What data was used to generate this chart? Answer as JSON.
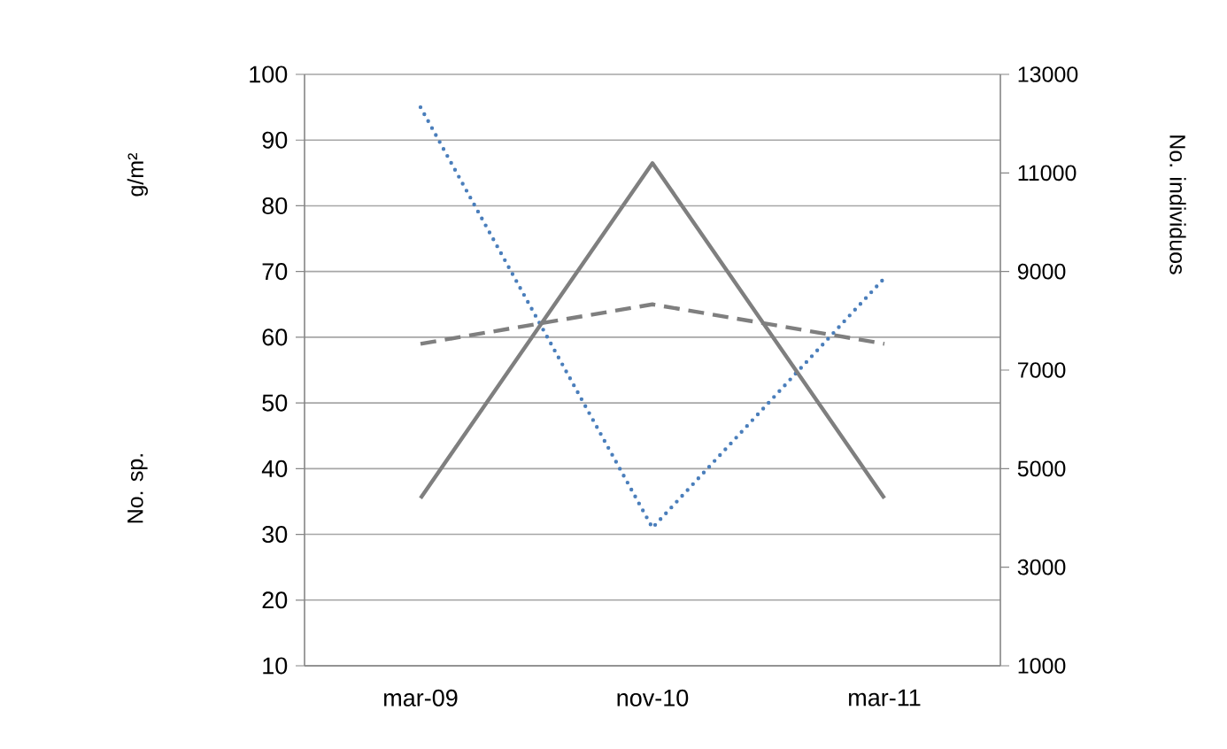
{
  "chart_data": {
    "type": "line",
    "ylabel": "g/m²",
    "y2label": "No. individuos",
    "annotations": [
      "No. sp."
    ],
    "categories": [
      "mar-09",
      "nov-10",
      "mar-11"
    ],
    "series": [
      {
        "color": "#4a7ebb",
        "line_style": "dotted",
        "values": [
          95,
          31,
          69
        ]
      },
      {
        "color": "#7f7f7f",
        "line_style": "dashed",
        "values": [
          59,
          65,
          59
        ]
      },
      {
        "color": "#7f7f7f",
        "line_style": "solid",
        "axis": "y2",
        "values": [
          4400,
          11200,
          4400
        ]
      }
    ],
    "ylim": [
      10,
      100
    ],
    "yticks": [
      10,
      20,
      30,
      40,
      50,
      60,
      70,
      80,
      90,
      100
    ],
    "y2lim": [
      1000,
      13000
    ],
    "y2ticks": [
      1000,
      3000,
      5000,
      7000,
      9000,
      11000,
      13000
    ],
    "grid": "y",
    "legend": false,
    "marker": "none"
  }
}
